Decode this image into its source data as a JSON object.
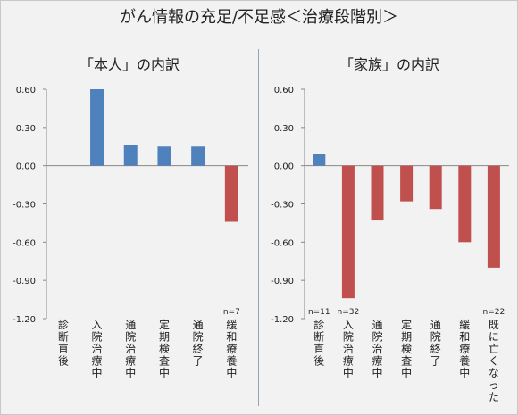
{
  "title": "がん情報の充足/不足感＜治療段階別＞",
  "chart_data": [
    {
      "type": "bar",
      "title": "「本人」の内訳",
      "ylim": [
        -1.2,
        0.6
      ],
      "yticks": [
        "0.60",
        "0.30",
        "0.00",
        "-0.30",
        "-0.60",
        "-0.90",
        "-1.20"
      ],
      "categories": [
        "診断直後",
        "入院治療中",
        "通院治療中",
        "定期検査中",
        "通院終了",
        "緩和療養中"
      ],
      "values": [
        0.0,
        0.6,
        0.16,
        0.15,
        0.15,
        -0.44
      ],
      "annotations": [
        {
          "category_index": 5,
          "text": "n=7"
        }
      ],
      "colors": {
        "positive": "#4f81bd",
        "negative": "#c0504d"
      },
      "grid": false
    },
    {
      "type": "bar",
      "title": "「家族」の内訳",
      "ylim": [
        -1.2,
        0.6
      ],
      "yticks": [
        "0.60",
        "0.30",
        "0.00",
        "-0.30",
        "-0.60",
        "-0.90",
        "-1.20"
      ],
      "categories": [
        "診断直後",
        "入院治療中",
        "通院治療中",
        "定期検査中",
        "通院終了",
        "緩和療養中",
        "既に亡くなった"
      ],
      "values": [
        0.09,
        -1.04,
        -0.43,
        -0.28,
        -0.34,
        -0.6,
        -0.8
      ],
      "annotations": [
        {
          "category_index": 0,
          "text": "n=11"
        },
        {
          "category_index": 1,
          "text": "n=32"
        },
        {
          "category_index": 6,
          "text": "n=22"
        }
      ],
      "colors": {
        "positive": "#4f81bd",
        "negative": "#c0504d"
      },
      "grid": false
    }
  ]
}
